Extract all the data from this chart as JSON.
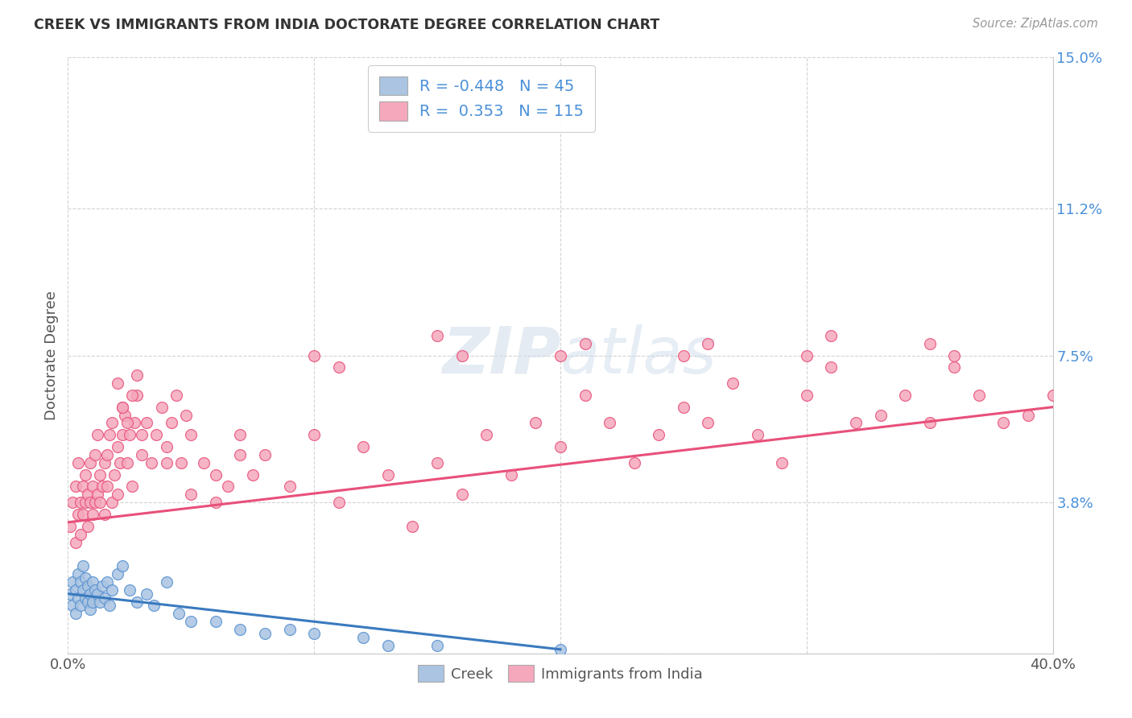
{
  "title": "CREEK VS IMMIGRANTS FROM INDIA DOCTORATE DEGREE CORRELATION CHART",
  "source": "Source: ZipAtlas.com",
  "ylabel": "Doctorate Degree",
  "x_min": 0.0,
  "x_max": 0.4,
  "y_min": 0.0,
  "y_max": 0.15,
  "y_ticks": [
    0.0,
    0.038,
    0.075,
    0.112,
    0.15
  ],
  "y_tick_labels": [
    "",
    "3.8%",
    "7.5%",
    "11.2%",
    "15.0%"
  ],
  "creek_color": "#aac4e2",
  "india_color": "#f5a8bc",
  "creek_edge_color": "#5590d0",
  "india_edge_color": "#e8507a",
  "creek_line_color": "#3a7abf",
  "india_line_color": "#e8507a",
  "tick_color": "#4a90d9",
  "creek_R": -0.448,
  "creek_N": 45,
  "india_R": 0.353,
  "india_N": 115,
  "background_color": "#ffffff",
  "grid_color": "#c8c8c8",
  "creek_x": [
    0.001,
    0.002,
    0.002,
    0.003,
    0.003,
    0.004,
    0.004,
    0.005,
    0.005,
    0.006,
    0.006,
    0.007,
    0.007,
    0.008,
    0.008,
    0.009,
    0.009,
    0.01,
    0.01,
    0.011,
    0.012,
    0.013,
    0.014,
    0.015,
    0.016,
    0.017,
    0.018,
    0.02,
    0.022,
    0.025,
    0.028,
    0.032,
    0.035,
    0.04,
    0.045,
    0.05,
    0.06,
    0.07,
    0.08,
    0.09,
    0.1,
    0.12,
    0.13,
    0.15,
    0.2
  ],
  "creek_y": [
    0.015,
    0.018,
    0.012,
    0.016,
    0.01,
    0.02,
    0.014,
    0.018,
    0.012,
    0.022,
    0.016,
    0.014,
    0.019,
    0.013,
    0.017,
    0.015,
    0.011,
    0.018,
    0.013,
    0.016,
    0.015,
    0.013,
    0.017,
    0.014,
    0.018,
    0.012,
    0.016,
    0.02,
    0.022,
    0.016,
    0.013,
    0.015,
    0.012,
    0.018,
    0.01,
    0.008,
    0.008,
    0.006,
    0.005,
    0.006,
    0.005,
    0.004,
    0.002,
    0.002,
    0.001
  ],
  "india_x": [
    0.001,
    0.002,
    0.003,
    0.003,
    0.004,
    0.004,
    0.005,
    0.005,
    0.006,
    0.006,
    0.007,
    0.007,
    0.008,
    0.008,
    0.009,
    0.009,
    0.01,
    0.01,
    0.011,
    0.011,
    0.012,
    0.012,
    0.013,
    0.013,
    0.014,
    0.015,
    0.015,
    0.016,
    0.016,
    0.017,
    0.018,
    0.018,
    0.019,
    0.02,
    0.02,
    0.021,
    0.022,
    0.022,
    0.023,
    0.024,
    0.025,
    0.026,
    0.027,
    0.028,
    0.03,
    0.032,
    0.034,
    0.036,
    0.038,
    0.04,
    0.042,
    0.044,
    0.046,
    0.048,
    0.05,
    0.055,
    0.06,
    0.065,
    0.07,
    0.075,
    0.08,
    0.09,
    0.1,
    0.11,
    0.12,
    0.13,
    0.14,
    0.15,
    0.16,
    0.17,
    0.18,
    0.19,
    0.2,
    0.21,
    0.22,
    0.23,
    0.24,
    0.25,
    0.26,
    0.27,
    0.28,
    0.29,
    0.3,
    0.31,
    0.32,
    0.33,
    0.34,
    0.35,
    0.36,
    0.37,
    0.38,
    0.39,
    0.4,
    0.35,
    0.36,
    0.3,
    0.31,
    0.25,
    0.26,
    0.2,
    0.21,
    0.15,
    0.16,
    0.1,
    0.11,
    0.06,
    0.07,
    0.03,
    0.04,
    0.02,
    0.022,
    0.024,
    0.026,
    0.028,
    0.05
  ],
  "india_y": [
    0.032,
    0.038,
    0.028,
    0.042,
    0.035,
    0.048,
    0.03,
    0.038,
    0.042,
    0.035,
    0.038,
    0.045,
    0.032,
    0.04,
    0.038,
    0.048,
    0.035,
    0.042,
    0.038,
    0.05,
    0.04,
    0.055,
    0.038,
    0.045,
    0.042,
    0.048,
    0.035,
    0.05,
    0.042,
    0.055,
    0.038,
    0.058,
    0.045,
    0.052,
    0.04,
    0.048,
    0.062,
    0.055,
    0.06,
    0.048,
    0.055,
    0.042,
    0.058,
    0.065,
    0.05,
    0.058,
    0.048,
    0.055,
    0.062,
    0.052,
    0.058,
    0.065,
    0.048,
    0.06,
    0.055,
    0.048,
    0.038,
    0.042,
    0.055,
    0.045,
    0.05,
    0.042,
    0.055,
    0.038,
    0.052,
    0.045,
    0.032,
    0.048,
    0.04,
    0.055,
    0.045,
    0.058,
    0.052,
    0.065,
    0.058,
    0.048,
    0.055,
    0.062,
    0.058,
    0.068,
    0.055,
    0.048,
    0.065,
    0.072,
    0.058,
    0.06,
    0.065,
    0.058,
    0.072,
    0.065,
    0.058,
    0.06,
    0.065,
    0.078,
    0.075,
    0.075,
    0.08,
    0.075,
    0.078,
    0.075,
    0.078,
    0.08,
    0.075,
    0.075,
    0.072,
    0.045,
    0.05,
    0.055,
    0.048,
    0.068,
    0.062,
    0.058,
    0.065,
    0.07,
    0.04
  ],
  "india_line_x0": 0.0,
  "india_line_x1": 0.4,
  "india_line_y0": 0.033,
  "india_line_y1": 0.062,
  "creek_line_x0": 0.0,
  "creek_line_x1": 0.2,
  "creek_line_y0": 0.015,
  "creek_line_y1": 0.001
}
